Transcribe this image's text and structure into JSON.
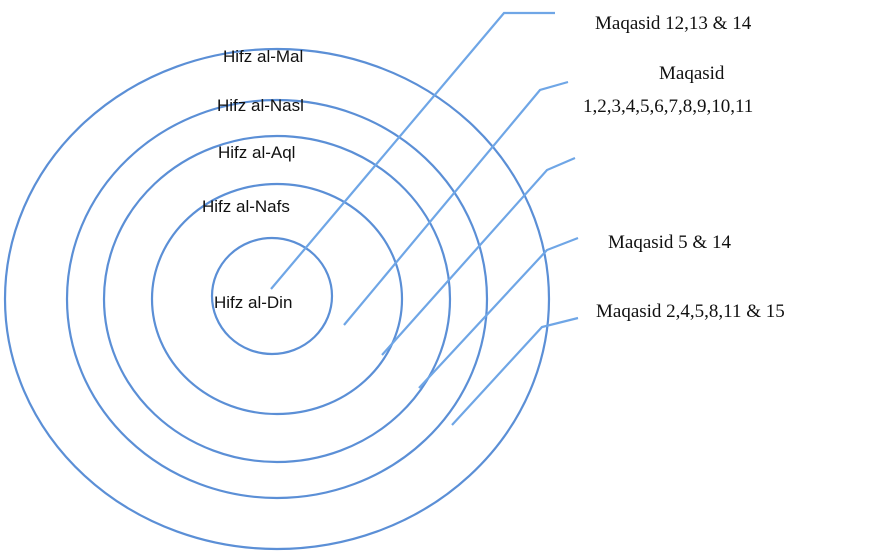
{
  "colors": {
    "ring_stroke": "#5b8fd6",
    "leader_stroke": "#6fa6e6",
    "text": "#111111"
  },
  "rings": [
    {
      "id": "din",
      "label": "Hifz al-Din"
    },
    {
      "id": "nafs",
      "label": "Hifz al-Nafs"
    },
    {
      "id": "aql",
      "label": "Hifz al-Aql"
    },
    {
      "id": "nasl",
      "label": "Hifz al-Nasl"
    },
    {
      "id": "mal",
      "label": "Hifz al-Mal"
    }
  ],
  "callouts": [
    {
      "id": "c1",
      "lines": [
        "Maqasid 12,13 & 14"
      ]
    },
    {
      "id": "c2",
      "lines": [
        "Maqasid",
        "1,2,3,4,5,6,7,8,9,10,11"
      ]
    },
    {
      "id": "c3",
      "lines": []
    },
    {
      "id": "c4",
      "lines": [
        "Maqasid 5 & 14"
      ]
    },
    {
      "id": "c5",
      "lines": [
        "Maqasid 2,4,5,8,11 & 15"
      ]
    }
  ]
}
